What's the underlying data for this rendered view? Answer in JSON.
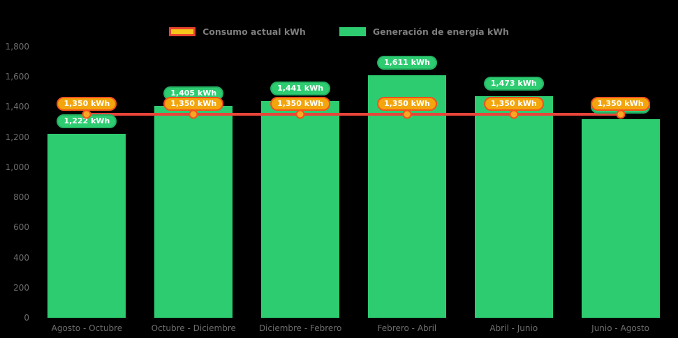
{
  "legend": {
    "items": [
      {
        "label": "Consumo actual kWh",
        "swatch_fill": "#f5c51c",
        "swatch_border": "#e8432e"
      },
      {
        "label": "Generación de energía kWh",
        "swatch_fill": "#2ecc71",
        "swatch_border": "#2ecc71"
      }
    ]
  },
  "chart_data": {
    "type": "bar",
    "title": "",
    "categories": [
      "Agosto - Octubre",
      "Octubre - Diciembre",
      "Diciembre - Febrero",
      "Febrero - Abril",
      "Abril - Junio",
      "Junio - Agosto"
    ],
    "series": [
      {
        "name": "Generación de energía kWh",
        "kind": "bar",
        "color": "#2ecc71",
        "values": [
          1222,
          1405,
          1441,
          1611,
          1473,
          1320
        ],
        "labels": [
          "1,222 kWh",
          "1,405 kWh",
          "1,441 kWh",
          "1,611 kWh",
          "1,473 kWh",
          "1,320 kWh"
        ],
        "label_fill": "#2ecc71",
        "label_border": "#24b263"
      },
      {
        "name": "Consumo actual kWh",
        "kind": "line",
        "color": "#e8443a",
        "marker_fill": "#f7a823",
        "marker_border": "#f4511e",
        "values": [
          1350,
          1350,
          1350,
          1350,
          1350,
          1350
        ],
        "labels": [
          "1,350 kWh",
          "1,350 kWh",
          "1,350 kWh",
          "1,350 kWh",
          "1,350 kWh",
          "1,350 kWh"
        ],
        "label_fill": "#f2a50c",
        "label_border": "#f4511e"
      }
    ],
    "xlabel": "",
    "ylabel": "",
    "ylim": [
      0,
      1800
    ],
    "yticks": [
      0,
      200,
      400,
      600,
      800,
      1000,
      1200,
      1400,
      1600,
      1800
    ],
    "ytick_labels": [
      "0",
      "200",
      "400",
      "600",
      "800",
      "1,000",
      "1,200",
      "1,400",
      "1,600",
      "1,800"
    ],
    "grid": false,
    "legend_position": "top",
    "background": "#000000"
  }
}
